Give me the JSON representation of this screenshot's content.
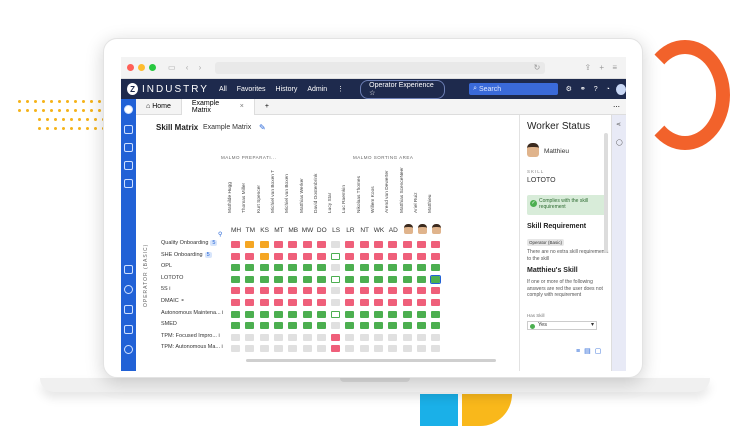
{
  "colors": {
    "navy": "#1e2a4d",
    "blue": "#2161d6",
    "green": "#4caf50",
    "red": "#ef5f7a",
    "orange": "#f5a623",
    "empty": "#e0e0e0"
  },
  "app": {
    "brand": "INDUSTRY",
    "nav": [
      "All",
      "Favorites",
      "History",
      "Admin",
      "⋮"
    ],
    "experience_pill": "Operator Experience ☆",
    "search_placeholder": "Search"
  },
  "tabs": {
    "home": "Home",
    "active": "Example Matrix",
    "close": "×",
    "add": "+"
  },
  "page": {
    "title": "Skill Matrix",
    "subtitle": "Example Matrix"
  },
  "matrix": {
    "group_label": "OPERATOR (BASIC)",
    "area_headers": [
      "MALMO PREPARATI...",
      "MALMO SORTING AREA"
    ],
    "operators": [
      {
        "name": "Mathilde Hugg",
        "initials": "MH"
      },
      {
        "name": "Thomas Miller",
        "initials": "TM"
      },
      {
        "name": "Kurt Spencer",
        "initials": "KS"
      },
      {
        "name": "Michiel van Boxen T",
        "initials": "MT"
      },
      {
        "name": "Michiel van Boxen",
        "initials": "MB"
      },
      {
        "name": "Matthias Werker",
        "initials": "MW"
      },
      {
        "name": "David Oostenbrink",
        "initials": "DO"
      },
      {
        "name": "Lucy Star",
        "initials": "LS"
      },
      {
        "name": "Luc Raemkin",
        "initials": "LR"
      },
      {
        "name": "Nikolaas Thomes",
        "initials": "NT"
      },
      {
        "name": "Willem Koos",
        "initials": "WK"
      },
      {
        "name": "Arend van Dewerter",
        "initials": "AD"
      },
      {
        "name": "Matthias ScenceNeer",
        "initials": ""
      },
      {
        "name": "Ariel Ruiz",
        "initials": ""
      },
      {
        "name": "Matthieu",
        "initials": ""
      }
    ],
    "skills": [
      {
        "label": "Quality Onboarding",
        "badge": "5"
      },
      {
        "label": "SHE Onboarding",
        "badge": "5"
      },
      {
        "label": "OPL",
        "badge": ""
      },
      {
        "label": "LOTOTO",
        "badge": ""
      },
      {
        "label": "5S  i",
        "badge": ""
      },
      {
        "label": "DMAIC  ⚬",
        "badge": ""
      },
      {
        "label": "Autonomous Maintena...  i",
        "badge": ""
      },
      {
        "label": "SMED",
        "badge": ""
      },
      {
        "label": "TPM: Focused Impro...  i",
        "badge": ""
      },
      {
        "label": "TPM: Autonomous Ma...  i",
        "badge": ""
      }
    ],
    "cells": [
      [
        "r",
        "o",
        "o",
        "r",
        "r",
        "r",
        "r",
        "e",
        "r",
        "r",
        "r",
        "r",
        "r",
        "r",
        "r"
      ],
      [
        "r",
        "r",
        "o",
        "r",
        "r",
        "r",
        "r",
        "gb",
        "r",
        "r",
        "r",
        "r",
        "r",
        "r",
        "r"
      ],
      [
        "g",
        "g",
        "g",
        "g",
        "g",
        "g",
        "g",
        "e",
        "g",
        "g",
        "g",
        "g",
        "g",
        "g",
        "g"
      ],
      [
        "g",
        "g",
        "g",
        "g",
        "g",
        "g",
        "g",
        "gb",
        "g",
        "g",
        "g",
        "g",
        "g",
        "g",
        "g"
      ],
      [
        "r",
        "r",
        "r",
        "r",
        "r",
        "r",
        "r",
        "e",
        "r",
        "r",
        "r",
        "r",
        "r",
        "r",
        "r"
      ],
      [
        "r",
        "r",
        "r",
        "r",
        "r",
        "r",
        "r",
        "e",
        "r",
        "r",
        "r",
        "r",
        "r",
        "r",
        "r"
      ],
      [
        "g",
        "g",
        "g",
        "g",
        "g",
        "g",
        "g",
        "gb",
        "g",
        "g",
        "g",
        "g",
        "g",
        "g",
        "g"
      ],
      [
        "g",
        "g",
        "g",
        "g",
        "g",
        "g",
        "g",
        "e",
        "g",
        "g",
        "g",
        "g",
        "g",
        "g",
        "g"
      ],
      [
        "e",
        "e",
        "e",
        "e",
        "e",
        "e",
        "e",
        "r",
        "e",
        "e",
        "e",
        "e",
        "e",
        "e",
        "e"
      ],
      [
        "e",
        "e",
        "e",
        "e",
        "e",
        "e",
        "e",
        "r",
        "e",
        "e",
        "e",
        "e",
        "e",
        "e",
        "e"
      ]
    ],
    "selected": {
      "row": 3,
      "col": 14
    }
  },
  "panel": {
    "title": "Worker Status",
    "worker_name": "Matthieu",
    "skill_label": "SKILL",
    "skill_value": "LOTOTO",
    "status_text": "Complies with the skill requirement",
    "requirement_heading": "Skill Requirement",
    "requirement_tag": "Operator (Basic)",
    "requirement_note": "There are no extra skill requirements to the skill",
    "skill_heading": "Matthieu's Skill",
    "skill_note": "If one or more of the following answers are red the user does not comply with requirement",
    "has_skill_label": "Has Skill",
    "has_skill_value": "Yes"
  }
}
